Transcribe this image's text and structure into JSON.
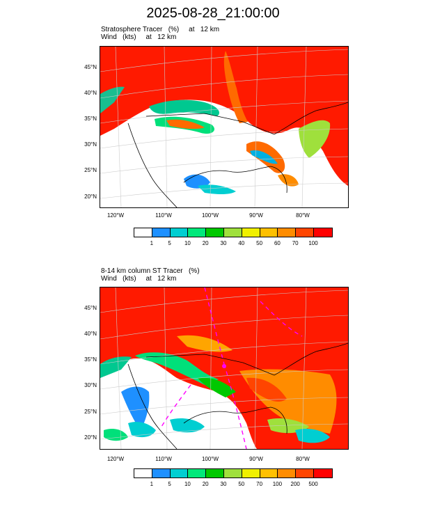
{
  "title": "2025-08-28_21:00:00",
  "panels": [
    {
      "line1": "Stratosphere Tracer   (%)     at   12 km",
      "line2": "Wind   (kts)     at   12 km",
      "lat_labels": [
        "45°N",
        "40°N",
        "35°N",
        "30°N",
        "25°N",
        "20°N"
      ],
      "lon_labels": [
        "120°W",
        "110°W",
        "100°W",
        "90°W",
        "80°W"
      ],
      "colorbar_labels": [
        "1",
        "5",
        "10",
        "20",
        "30",
        "40",
        "50",
        "60",
        "70",
        "100"
      ]
    },
    {
      "line1": "8-14 km column ST Tracer   (%)",
      "line2": "Wind   (kts)     at   12 km",
      "lat_labels": [
        "45°N",
        "40°N",
        "35°N",
        "30°N",
        "25°N",
        "20°N"
      ],
      "lon_labels": [
        "120°W",
        "110°W",
        "100°W",
        "90°W",
        "80°W"
      ],
      "colorbar_labels": [
        "1",
        "5",
        "10",
        "20",
        "30",
        "50",
        "70",
        "100",
        "200",
        "500"
      ]
    }
  ],
  "colorbar_colors": [
    "#ffffff",
    "#1e90ff",
    "#00ced1",
    "#00e87a",
    "#00c800",
    "#9fe03c",
    "#f0f000",
    "#ffc000",
    "#ff8c00",
    "#ff4500",
    "#ff0000"
  ]
}
